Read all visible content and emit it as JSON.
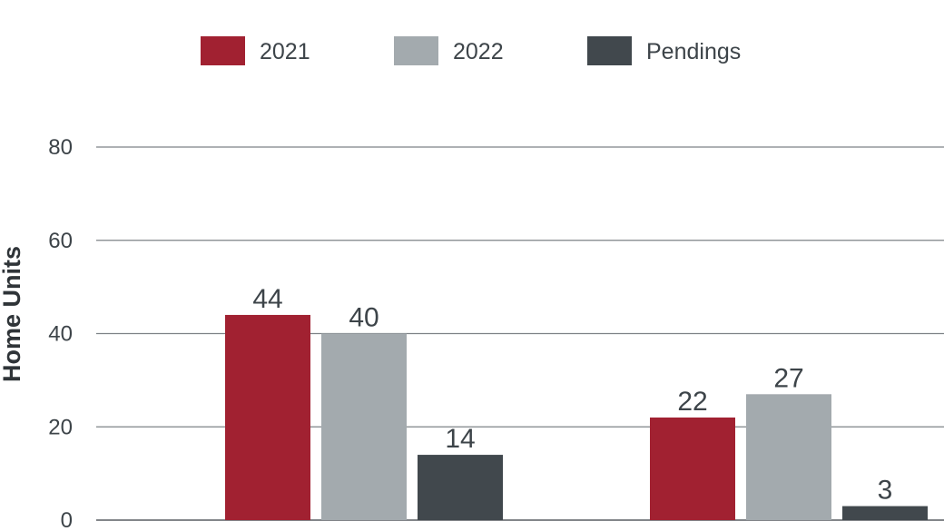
{
  "chart_data": {
    "type": "bar",
    "categories": [
      "",
      ""
    ],
    "series": [
      {
        "name": "2021",
        "values": [
          44,
          22
        ],
        "color": "#a12131"
      },
      {
        "name": "2022",
        "values": [
          40,
          27
        ],
        "color": "#a3aaae"
      },
      {
        "name": "Pendings",
        "values": [
          14,
          3
        ],
        "color": "#41484d"
      }
    ],
    "data_labels": [
      [
        "44",
        "22"
      ],
      [
        "40",
        "27"
      ],
      [
        "14",
        "3"
      ]
    ],
    "ylabel": "Home Units",
    "xlabel": "",
    "ylim": [
      0,
      80
    ],
    "yticks": [
      "0",
      "20",
      "40",
      "60",
      "80"
    ],
    "grid": true,
    "legend": {
      "position": "top-center"
    }
  }
}
